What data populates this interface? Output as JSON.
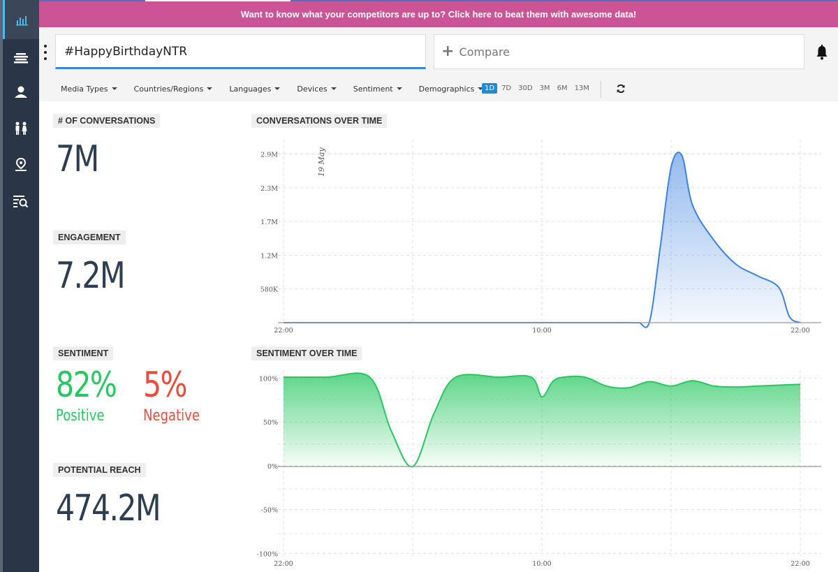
{
  "banner": {
    "text": "Want to know what your competitors are up to? Click here to beat them with awesome data!"
  },
  "sidebar": {
    "items": [
      {
        "icon": "bar-chart-icon"
      },
      {
        "icon": "stream-icon"
      },
      {
        "icon": "user-icon"
      },
      {
        "icon": "people-icon"
      },
      {
        "icon": "location-pin-icon"
      },
      {
        "icon": "list-search-icon"
      }
    ]
  },
  "header": {
    "search": {
      "value": "#HappyBirthdayNTR"
    },
    "compare": {
      "label": "Compare"
    },
    "filters": [
      "Media Types",
      "Countries/Regions",
      "Languages",
      "Devices",
      "Sentiment",
      "Demographics"
    ],
    "ranges": [
      {
        "label": "1D",
        "active": true
      },
      {
        "label": "7D",
        "active": false
      },
      {
        "label": "30D",
        "active": false
      },
      {
        "label": "3M",
        "active": false
      },
      {
        "label": "6M",
        "active": false
      },
      {
        "label": "13M",
        "active": false
      }
    ]
  },
  "metrics": {
    "conversations": {
      "label": "# OF CONVERSATIONS",
      "value": "7M"
    },
    "engagement": {
      "label": "ENGAGEMENT",
      "value": "7.2M"
    },
    "sentiment": {
      "label": "SENTIMENT",
      "positive_value": "82%",
      "positive_label": "Positive",
      "negative_value": "5%",
      "negative_label": "Negative"
    },
    "reach": {
      "label": "POTENTIAL REACH",
      "value": "474.2M"
    }
  },
  "chart_data": [
    {
      "type": "area",
      "title": "CONVERSATIONS OVER TIME",
      "annotation": "19 May",
      "x_ticks": [
        "22:00",
        "10:00",
        "22:00"
      ],
      "y_ticks": [
        "580K",
        "1.2M",
        "1.7M",
        "2.3M",
        "2.9M"
      ],
      "ylim": [
        0,
        3000000
      ],
      "x_hours": [
        0,
        2,
        4,
        6,
        8,
        10,
        12,
        14,
        15,
        16,
        16.5,
        17,
        17.5,
        18,
        18.5,
        19,
        20,
        21,
        22,
        23,
        23.5,
        24
      ],
      "values": [
        0,
        0,
        0,
        0,
        0,
        0,
        0,
        0,
        0,
        0,
        0,
        20000,
        1300000,
        2650000,
        2850000,
        2000000,
        1400000,
        1000000,
        800000,
        600000,
        100000,
        0
      ],
      "color": "#3d82e0"
    },
    {
      "type": "area",
      "title": "SENTIMENT OVER TIME",
      "x_ticks": [
        "22:00",
        "10:00",
        "22:00"
      ],
      "y_ticks": [
        "100%",
        "50%",
        "0%",
        "-50%",
        "-100%"
      ],
      "ylim": [
        -100,
        100
      ],
      "x_hours": [
        0,
        2,
        4,
        5,
        6,
        7,
        8,
        10,
        11.5,
        12,
        12.5,
        13,
        14,
        15,
        16,
        17,
        18,
        19,
        20,
        21,
        22,
        23,
        24
      ],
      "values": [
        100,
        100,
        100,
        40,
        0,
        60,
        100,
        100,
        100,
        78,
        95,
        100,
        100,
        90,
        88,
        95,
        90,
        96,
        90,
        89,
        90,
        91,
        92
      ],
      "color": "#27c760"
    }
  ]
}
